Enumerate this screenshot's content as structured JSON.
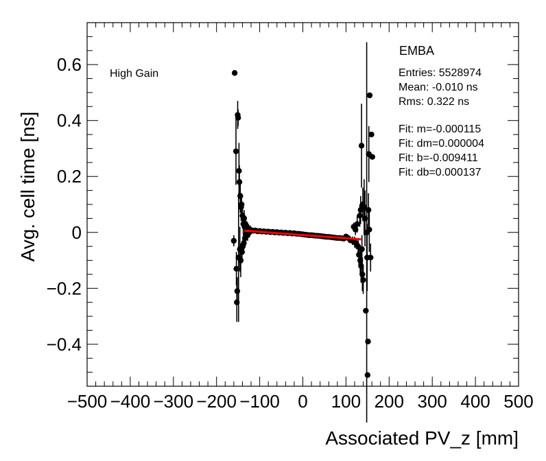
{
  "chart_data": {
    "type": "scatter",
    "title": "",
    "xlabel": "Associated PV_z [mm]",
    "ylabel": "Avg. cell time [ns]",
    "xlim": [
      -500,
      500
    ],
    "ylim": [
      -0.55,
      0.75
    ],
    "x_ticks": [
      -500,
      -400,
      -300,
      -200,
      -100,
      0,
      100,
      200,
      300,
      400,
      500
    ],
    "x_tick_labels": [
      "−500",
      "−400",
      "−300",
      "−200",
      "−100",
      "0",
      "100",
      "200",
      "300",
      "400",
      "500"
    ],
    "y_ticks": [
      -0.4,
      -0.2,
      0,
      0.2,
      0.4,
      0.6
    ],
    "y_tick_labels": [
      "−0.4",
      "−0.2",
      "0",
      "0.2",
      "0.4",
      "0.6"
    ],
    "annotation": "High Gain",
    "stats_box": {
      "title": "EMBA",
      "lines": [
        "Entries: 5528974",
        "Mean: -0.010 ns",
        "Rms: 0.322 ns",
        "",
        "Fit: m=-0.000115",
        "Fit: dm=0.000004",
        "Fit: b=-0.009411",
        "Fit: db=0.000137"
      ]
    },
    "fit_line": {
      "color": "#ff0000",
      "x": [
        -135,
        135
      ],
      "y": [
        0.0061,
        -0.0249
      ]
    },
    "series": [
      {
        "name": "data",
        "color": "#000000",
        "points": [
          [
            -160,
            -0.03,
            0.02
          ],
          [
            -158,
            0.57,
            0.0
          ],
          [
            -155,
            0.29,
            0.12
          ],
          [
            -154,
            -0.13,
            0.06
          ],
          [
            -153,
            -0.25,
            0.07
          ],
          [
            -152,
            -0.21,
            0.05
          ],
          [
            -151,
            0.42,
            0.05
          ],
          [
            -150,
            0.41,
            0.03
          ],
          [
            -149,
            -0.09,
            0.23
          ],
          [
            -148,
            0.22,
            0.1
          ],
          [
            -147,
            0.18,
            0.06
          ],
          [
            -146,
            -0.06,
            0.08
          ],
          [
            -145,
            0.13,
            0.06
          ],
          [
            -144,
            -0.1,
            0.06
          ],
          [
            -143,
            0.09,
            0.05
          ],
          [
            -142,
            0.1,
            0.04
          ],
          [
            -141,
            -0.07,
            0.04
          ],
          [
            -140,
            0.06,
            0.04
          ],
          [
            -139,
            -0.05,
            0.03
          ],
          [
            -138,
            0.03,
            0.04
          ],
          [
            -137,
            -0.04,
            0.03
          ],
          [
            -136,
            0.05,
            0.03
          ],
          [
            -135,
            0.02,
            0.04
          ],
          [
            -134,
            -0.02,
            0.03
          ],
          [
            -133,
            0.03,
            0.02
          ],
          [
            -132,
            -0.01,
            0.03
          ],
          [
            -130,
            0.02,
            0.02
          ],
          [
            -128,
            -0.01,
            0.02
          ],
          [
            -126,
            0.01,
            0.02
          ],
          [
            -124,
            0.0,
            0.015
          ],
          [
            -122,
            0.01,
            0.015
          ],
          [
            -120,
            0.008,
            0.01
          ],
          [
            -115,
            0.006,
            0.01
          ],
          [
            -110,
            0.007,
            0.008
          ],
          [
            -105,
            0.004,
            0.006
          ],
          [
            -100,
            0.005,
            0.006
          ],
          [
            -95,
            0.003,
            0.005
          ],
          [
            -90,
            0.004,
            0.004
          ],
          [
            -85,
            0.002,
            0.004
          ],
          [
            -80,
            0.003,
            0.004
          ],
          [
            -75,
            0.001,
            0.003
          ],
          [
            -70,
            0.002,
            0.003
          ],
          [
            -65,
            0.0,
            0.003
          ],
          [
            -60,
            0.001,
            0.003
          ],
          [
            -55,
            -0.001,
            0.003
          ],
          [
            -50,
            0.0,
            0.003
          ],
          [
            -45,
            -0.002,
            0.003
          ],
          [
            -40,
            -0.001,
            0.003
          ],
          [
            -35,
            -0.003,
            0.003
          ],
          [
            -30,
            -0.002,
            0.003
          ],
          [
            -25,
            -0.004,
            0.003
          ],
          [
            -20,
            -0.003,
            0.003
          ],
          [
            -15,
            -0.005,
            0.003
          ],
          [
            -10,
            -0.005,
            0.003
          ],
          [
            -5,
            -0.006,
            0.003
          ],
          [
            0,
            -0.007,
            0.003
          ],
          [
            5,
            -0.008,
            0.003
          ],
          [
            10,
            -0.009,
            0.003
          ],
          [
            15,
            -0.01,
            0.003
          ],
          [
            20,
            -0.01,
            0.003
          ],
          [
            25,
            -0.011,
            0.003
          ],
          [
            30,
            -0.012,
            0.003
          ],
          [
            35,
            -0.012,
            0.003
          ],
          [
            40,
            -0.013,
            0.003
          ],
          [
            45,
            -0.014,
            0.003
          ],
          [
            50,
            -0.015,
            0.003
          ],
          [
            55,
            -0.016,
            0.003
          ],
          [
            60,
            -0.016,
            0.004
          ],
          [
            65,
            -0.017,
            0.004
          ],
          [
            70,
            -0.018,
            0.004
          ],
          [
            75,
            -0.019,
            0.004
          ],
          [
            80,
            -0.02,
            0.004
          ],
          [
            85,
            -0.02,
            0.005
          ],
          [
            90,
            -0.021,
            0.006
          ],
          [
            95,
            -0.022,
            0.006
          ],
          [
            100,
            -0.015,
            0.008
          ],
          [
            105,
            -0.02,
            0.01
          ],
          [
            110,
            -0.028,
            0.01
          ],
          [
            115,
            -0.03,
            0.015
          ],
          [
            118,
            0.02,
            0.015
          ],
          [
            120,
            -0.035,
            0.02
          ],
          [
            122,
            0.01,
            0.02
          ],
          [
            124,
            -0.04,
            0.02
          ],
          [
            126,
            0.03,
            0.03
          ],
          [
            128,
            -0.05,
            0.03
          ],
          [
            130,
            -0.08,
            0.04
          ],
          [
            132,
            0.06,
            0.04
          ],
          [
            133,
            -0.1,
            0.05
          ],
          [
            134,
            0.08,
            0.05
          ],
          [
            135,
            -0.12,
            0.06
          ],
          [
            136,
            0.31,
            0.15
          ],
          [
            137,
            -0.06,
            0.05
          ],
          [
            138,
            -0.15,
            0.06
          ],
          [
            139,
            0.1,
            0.06
          ],
          [
            140,
            -0.17,
            0.05
          ],
          [
            142,
            0.09,
            0.1
          ],
          [
            144,
            0.05,
            0.1
          ],
          [
            146,
            -0.28,
            0.0
          ],
          [
            148,
            0.0,
            0.68
          ],
          [
            149,
            -0.09,
            0.12
          ],
          [
            150,
            -0.51,
            0.0
          ],
          [
            151,
            -0.39,
            0.0
          ],
          [
            152,
            0.08,
            0.06
          ],
          [
            153,
            0.28,
            0.1
          ],
          [
            154,
            0.01,
            0.08
          ],
          [
            155,
            0.49,
            0.0
          ],
          [
            157,
            -0.09,
            0.05
          ],
          [
            159,
            0.35,
            0.0
          ],
          [
            161,
            0.27,
            0.0
          ]
        ]
      }
    ]
  }
}
